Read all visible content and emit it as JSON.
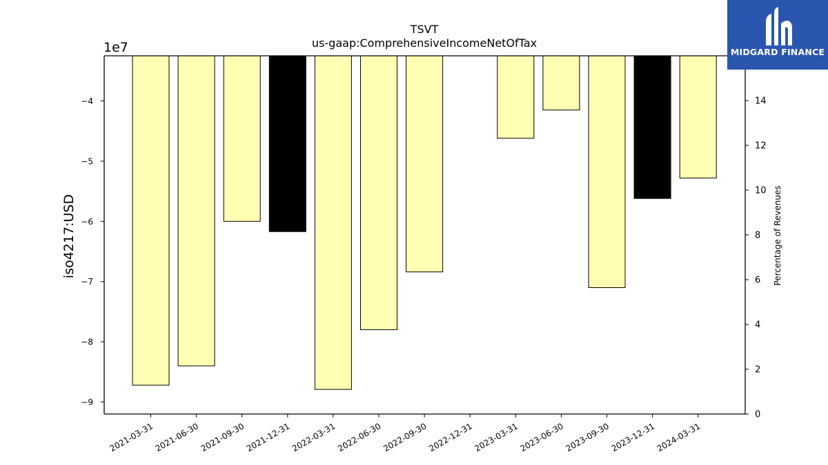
{
  "brand": {
    "name": "MIDGARD FINANCE",
    "color": "#2a56b0"
  },
  "chart_data": {
    "type": "bar",
    "title": "TSVT",
    "subtitle": "us-gaap:ComprehensiveIncomeNetOfTax",
    "ylabel": "iso4217:USD",
    "y_offset_label": "1e7",
    "y2label": "Percentage of Revenues",
    "ylim": [
      -9.2,
      -3.25
    ],
    "y2lim": [
      0,
      16
    ],
    "yticks": [
      -9,
      -8,
      -7,
      -6,
      -5,
      -4
    ],
    "ytick_labels": [
      "−9",
      "−8",
      "−7",
      "−6",
      "−5",
      "−4"
    ],
    "y2ticks": [
      0,
      2,
      4,
      6,
      8,
      10,
      12,
      14
    ],
    "categories": [
      "2021-03-31",
      "2021-06-30",
      "2021-09-30",
      "2021-12-31",
      "2022-03-31",
      "2022-06-30",
      "2022-09-30",
      "2022-12-31",
      "2023-03-31",
      "2023-06-30",
      "2023-09-30",
      "2023-12-31",
      "2024-03-31"
    ],
    "values": [
      -8.72,
      -8.4,
      -6.0,
      -6.17,
      -8.79,
      -7.8,
      -6.84,
      null,
      -4.62,
      -4.15,
      -7.1,
      -5.62,
      -5.28
    ],
    "bar_colors": [
      "#ffffb3",
      "#ffffb3",
      "#ffffb3",
      "#000000",
      "#ffffb3",
      "#ffffb3",
      "#ffffb3",
      null,
      "#ffffb3",
      "#ffffb3",
      "#ffffb3",
      "#000000",
      "#ffffb3"
    ],
    "grid": false
  }
}
